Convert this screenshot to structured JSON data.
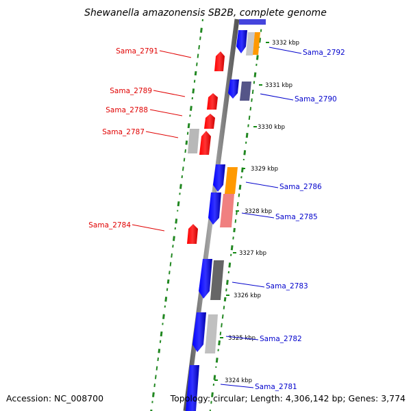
{
  "header": {
    "title": "Shewanella amazonensis SB2B, complete genome"
  },
  "footer": {
    "accession": "Accession: NC_008700",
    "topology": "Topology: circular; Length: 4,306,142 bp; Genes: 3,774"
  },
  "scale_labels": [
    "3332 kbp",
    "3331 kbp",
    "3330 kbp",
    "3329 kbp",
    "3328 kbp",
    "3327 kbp",
    "3326 kbp",
    "3325 kbp",
    "3324 kbp"
  ],
  "genes_left": [
    "Sama_2791",
    "Sama_2789",
    "Sama_2788",
    "Sama_2787",
    "Sama_2784"
  ],
  "genes_right": [
    "Sama_2792",
    "Sama_2790",
    "Sama_2786",
    "Sama_2785",
    "Sama_2783",
    "Sama_2782",
    "Sama_2781"
  ],
  "colors": {
    "forward_gene": "#ff0000",
    "reverse_gene": "#0000ff",
    "backbone": "#888888",
    "gc_dots": "#228822",
    "label_left": "#e00000",
    "label_right": "#0000cc",
    "feature_orange": "#ff9900",
    "feature_pink": "#f08080",
    "feature_gray": "#b0b0b0",
    "feature_dark_gray": "#666666",
    "feature_slate": "#555588"
  }
}
